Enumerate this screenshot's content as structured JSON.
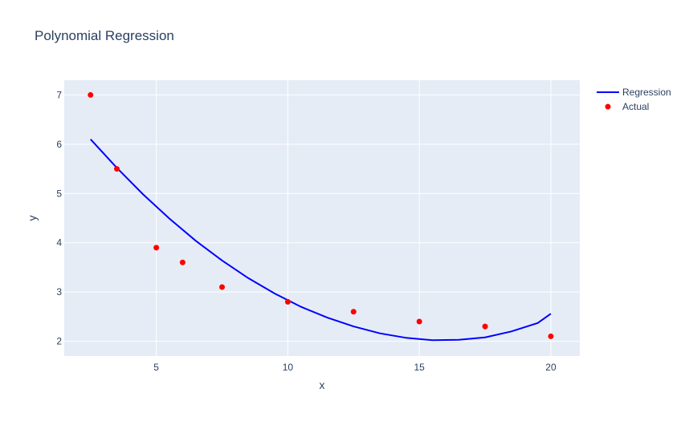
{
  "chart_data": {
    "type": "scatter",
    "title": "Polynomial Regression",
    "xlabel": "x",
    "ylabel": "y",
    "xlim": [
      1.5,
      21.1
    ],
    "ylim": [
      1.7,
      7.3
    ],
    "xticks": [
      5,
      10,
      15,
      20
    ],
    "yticks": [
      2,
      3,
      4,
      5,
      6,
      7
    ],
    "grid": true,
    "legend_position": "top-right",
    "plot_background": "#e5ecf6",
    "series": [
      {
        "name": "Regression",
        "mode": "line",
        "color": "#0000ff",
        "x": [
          2.5,
          3.5,
          4.5,
          5.5,
          6.5,
          7.5,
          8.5,
          9.5,
          10.5,
          11.5,
          12.5,
          13.5,
          14.5,
          15.5,
          16.5,
          17.5,
          18.5,
          19.5,
          20.0
        ],
        "y": [
          6.1,
          5.52,
          4.98,
          4.49,
          4.04,
          3.64,
          3.28,
          2.97,
          2.7,
          2.48,
          2.3,
          2.16,
          2.07,
          2.02,
          2.03,
          2.08,
          2.2,
          2.37,
          2.56
        ]
      },
      {
        "name": "Actual",
        "mode": "markers",
        "color": "#ff0000",
        "x": [
          2.5,
          3.5,
          5,
          6,
          7.5,
          10,
          12.5,
          15,
          17.5,
          20
        ],
        "y": [
          7.0,
          5.5,
          3.9,
          3.6,
          3.1,
          2.8,
          2.6,
          2.4,
          2.3,
          2.1
        ]
      }
    ]
  }
}
